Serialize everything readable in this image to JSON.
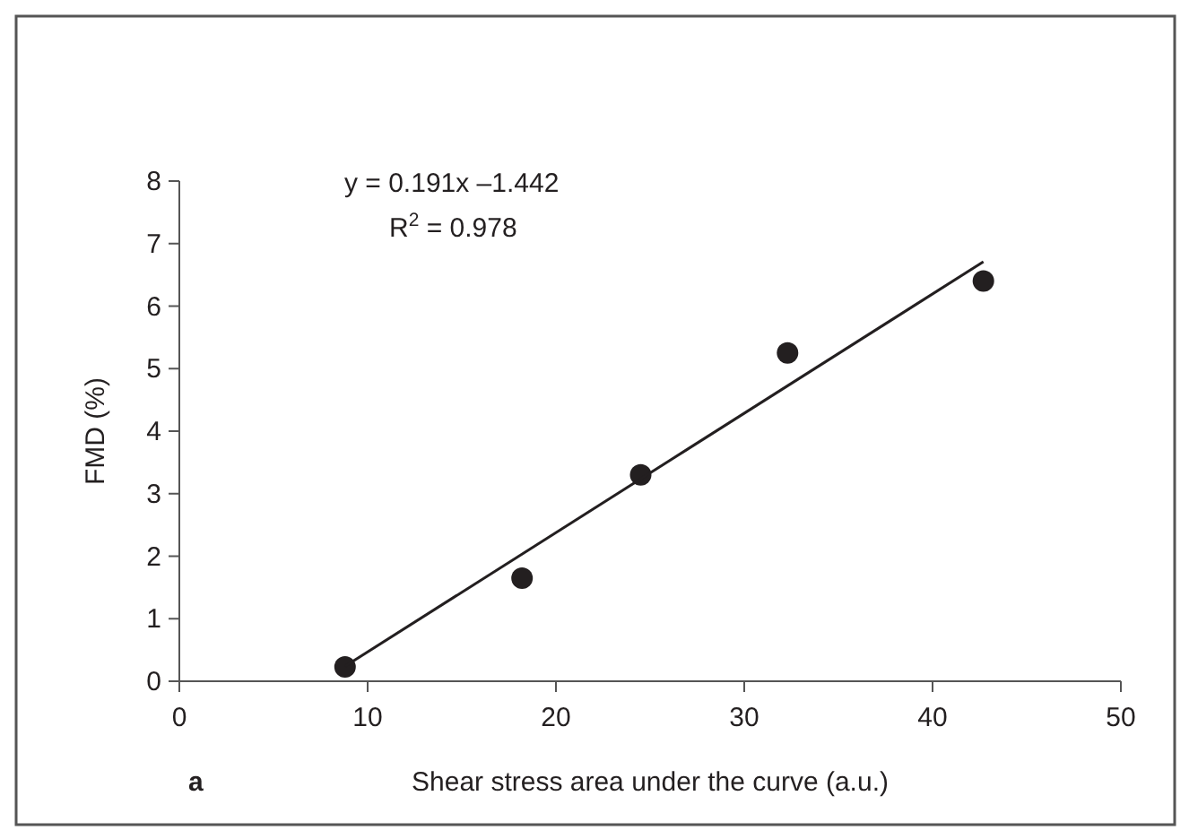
{
  "chart_data": {
    "type": "scatter",
    "xlabel": "Shear stress area under the curve (a.u.)",
    "ylabel": "FMD (%)",
    "x": [
      8.8,
      18.2,
      24.5,
      32.3,
      42.7
    ],
    "series": [
      {
        "color": "#231f20",
        "values": [
          0.23,
          1.65,
          3.3,
          5.25,
          6.4
        ],
        "marker": "circle"
      },
      {
        "type": "line",
        "color": "#231f20",
        "x": [
          8.8,
          42.7
        ],
        "values": [
          0.24,
          6.71
        ],
        "marker": "none"
      }
    ],
    "xlim": [
      0,
      50
    ],
    "xticks": [
      0,
      10,
      20,
      30,
      40,
      50
    ],
    "ylim": [
      0,
      8
    ],
    "yticks": [
      0,
      1,
      2,
      3,
      4,
      5,
      6,
      7,
      8
    ],
    "annotations": [
      "y = 0.191x –1.442",
      "R$^{2}$ = 0.978",
      "a"
    ],
    "grid": false
  }
}
